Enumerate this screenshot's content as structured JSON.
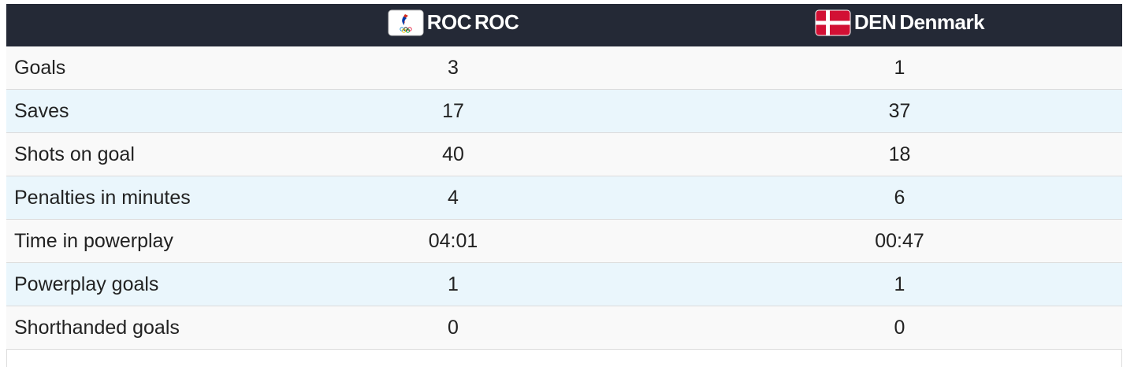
{
  "header": {
    "teams": [
      {
        "code": "ROC",
        "name": "ROC"
      },
      {
        "code": "DEN",
        "name": "Denmark"
      }
    ]
  },
  "table": {
    "rows": [
      [
        "Goals",
        3,
        1
      ],
      [
        "Saves",
        17,
        37
      ],
      [
        "Shots on goal",
        40,
        18
      ],
      [
        "Penalties in minutes",
        4,
        6
      ],
      [
        "Time in powerplay",
        "04:01",
        "00:47"
      ],
      [
        "Powerplay goals",
        1,
        1
      ],
      [
        "Shorthanded goals",
        0,
        0
      ]
    ]
  }
}
